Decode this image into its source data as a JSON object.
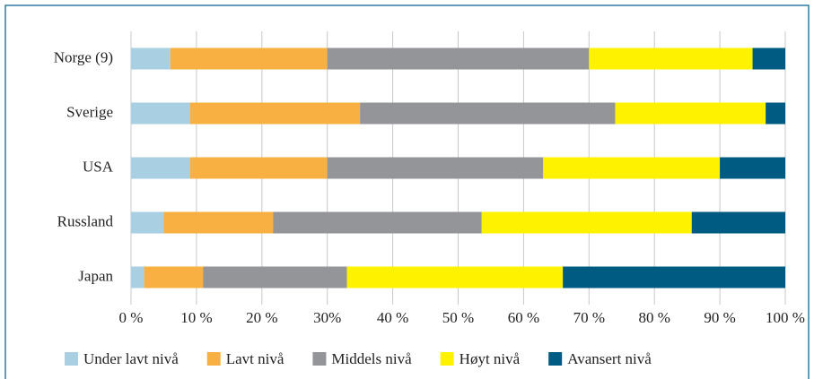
{
  "chart_data": {
    "type": "stacked-barh",
    "categories": [
      "Norge (9)",
      "Sverige",
      "USA",
      "Russland",
      "Japan"
    ],
    "series": [
      {
        "name": "Under lavt nivå",
        "color": "#a9cfe2",
        "values": [
          6,
          9,
          9,
          5,
          2
        ]
      },
      {
        "name": "Lavt nivå",
        "color": "#f8b043",
        "values": [
          24,
          26,
          21,
          16.7,
          9
        ]
      },
      {
        "name": "Middels nivå",
        "color": "#939598",
        "values": [
          40,
          39,
          33,
          31.9,
          22
        ]
      },
      {
        "name": "Høyt nivå",
        "color": "#fff200",
        "values": [
          25,
          23,
          27,
          32.1,
          33
        ]
      },
      {
        "name": "Avansert nivå",
        "color": "#005b82",
        "values": [
          5,
          3,
          10,
          14.3,
          34
        ]
      }
    ],
    "xlim": [
      0,
      100
    ],
    "xticks": [
      {
        "value": 0,
        "label": "0 %"
      },
      {
        "value": 10,
        "label": "10 %"
      },
      {
        "value": 20,
        "label": "20 %"
      },
      {
        "value": 30,
        "label": "30%"
      },
      {
        "value": 40,
        "label": "40 %"
      },
      {
        "value": 50,
        "label": "50 %"
      },
      {
        "value": 60,
        "label": "60 %"
      },
      {
        "value": 70,
        "label": "70 %"
      },
      {
        "value": 80,
        "label": "80 %"
      },
      {
        "value": 90,
        "label": "90 %"
      },
      {
        "value": 100,
        "label": "100 %"
      }
    ],
    "grid": true,
    "legend": "bottom"
  }
}
